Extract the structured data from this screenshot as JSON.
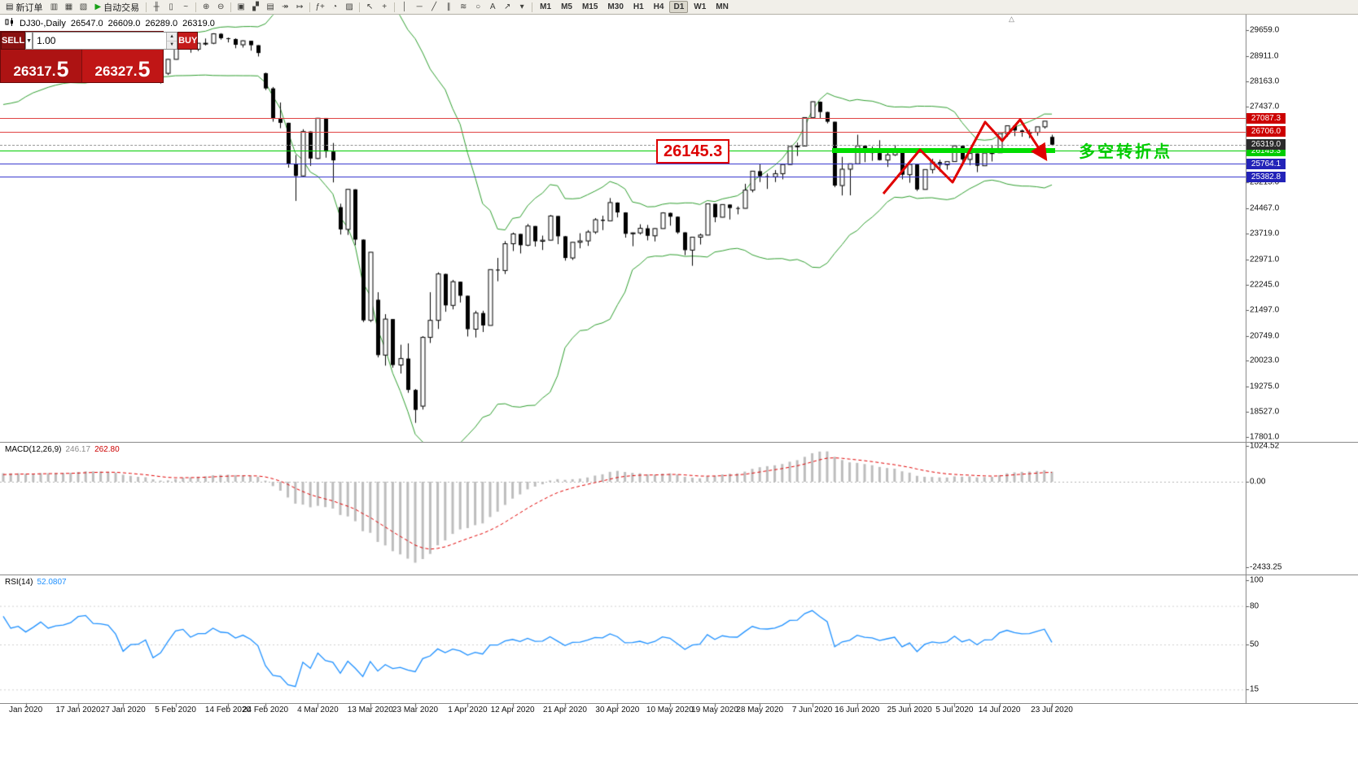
{
  "toolbar": {
    "items": [
      {
        "kind": "button",
        "name": "new-order-button",
        "glyph": "▤",
        "label": "新订单"
      },
      {
        "kind": "icon",
        "name": "market-watch-icon",
        "glyph": "▥"
      },
      {
        "kind": "icon",
        "name": "data-window-icon",
        "glyph": "▦"
      },
      {
        "kind": "icon",
        "name": "navigator-icon",
        "glyph": "▧"
      },
      {
        "kind": "button",
        "name": "auto-trading-button",
        "glyph": "▶",
        "label": "自动交易",
        "glyph_color": "#18a018"
      },
      {
        "kind": "sep"
      },
      {
        "kind": "icon",
        "name": "bar-chart-icon",
        "glyph": "╫"
      },
      {
        "kind": "icon",
        "name": "candlestick-chart-icon",
        "glyph": "▯"
      },
      {
        "kind": "icon",
        "name": "line-chart-icon",
        "glyph": "~"
      },
      {
        "kind": "sep"
      },
      {
        "kind": "icon",
        "name": "zoom-in-icon",
        "glyph": "⊕"
      },
      {
        "kind": "icon",
        "name": "zoom-out-icon",
        "glyph": "⊖"
      },
      {
        "kind": "sep"
      },
      {
        "kind": "icon",
        "name": "new-chart-icon",
        "glyph": "▣"
      },
      {
        "kind": "icon",
        "name": "tile-windows-icon",
        "glyph": "▞"
      },
      {
        "kind": "icon",
        "name": "cascade-windows-icon",
        "glyph": "▤"
      },
      {
        "kind": "icon",
        "name": "auto-scroll-icon",
        "glyph": "↠"
      },
      {
        "kind": "icon",
        "name": "chart-shift-icon",
        "glyph": "↦"
      },
      {
        "kind": "sep"
      },
      {
        "kind": "icon",
        "name": "indicators-icon",
        "glyph": "ƒ+"
      },
      {
        "kind": "icon",
        "name": "periods-icon",
        "glyph": "◔"
      },
      {
        "kind": "icon",
        "name": "templates-icon",
        "glyph": "▨"
      },
      {
        "kind": "sep"
      },
      {
        "kind": "icon",
        "name": "cursor-icon",
        "glyph": "↖"
      },
      {
        "kind": "icon",
        "name": "crosshair-icon",
        "glyph": "+"
      },
      {
        "kind": "sep"
      },
      {
        "kind": "icon",
        "name": "vertical-line-icon",
        "glyph": "│"
      },
      {
        "kind": "icon",
        "name": "horizontal-line-icon",
        "glyph": "─"
      },
      {
        "kind": "icon",
        "name": "trendline-icon",
        "glyph": "╱"
      },
      {
        "kind": "icon",
        "name": "channel-icon",
        "glyph": "∥"
      },
      {
        "kind": "icon",
        "name": "fibonacci-icon",
        "glyph": "≋"
      },
      {
        "kind": "icon",
        "name": "shapes-icon",
        "glyph": "○"
      },
      {
        "kind": "icon",
        "name": "text-label-icon",
        "glyph": "A"
      },
      {
        "kind": "icon",
        "name": "arrow-tools-icon",
        "glyph": "↗"
      },
      {
        "kind": "icon",
        "name": "objects-dropdown-icon",
        "glyph": "▾"
      }
    ],
    "timeframes": [
      "M1",
      "M5",
      "M15",
      "M30",
      "H1",
      "H4",
      "D1",
      "W1",
      "MN"
    ],
    "active_timeframe": "D1"
  },
  "chart_header": {
    "symbol": "DJ30-,Daily",
    "open": "26547.0",
    "high": "26609.0",
    "low": "26289.0",
    "close": "26319.0"
  },
  "trade_panel": {
    "sell_label": "SELL",
    "buy_label": "BUY",
    "volume": "1.00",
    "dropdown_glyph": "▼",
    "spin_up": "▲",
    "spin_down": "▼",
    "sell_whole": "26317.",
    "sell_pip": "5",
    "buy_whole": "26327.",
    "buy_pip": "5"
  },
  "annotations": {
    "price_flag": "26145.3",
    "note_cn": "多空转折点",
    "zigzag_points": [
      [
        1085,
        238
      ],
      [
        1130,
        184
      ],
      [
        1170,
        224
      ],
      [
        1210,
        150
      ],
      [
        1231,
        173
      ],
      [
        1253,
        147
      ],
      [
        1283,
        193
      ]
    ]
  },
  "misc": {
    "shift_marker": "△"
  },
  "chart_data": {
    "type": "candlestick",
    "symbol": "DJ30",
    "timeframe": "Daily",
    "ylim": [
      17801.0,
      29659.0
    ],
    "price_axis_ticks": [
      "29659.0",
      "28911.0",
      "28163.0",
      "27437.0",
      "25215.0",
      "24467.0",
      "23719.0",
      "22971.0",
      "22245.0",
      "21497.0",
      "20749.0",
      "20023.0",
      "19275.0",
      "18527.0",
      "17801.0"
    ],
    "date_labels": [
      {
        "index": 3,
        "label": "Jan 2020"
      },
      {
        "index": 10,
        "label": "17 Jan 2020"
      },
      {
        "index": 16,
        "label": "27 Jan 2020"
      },
      {
        "index": 23,
        "label": "5 Feb 2020"
      },
      {
        "index": 30,
        "label": "14 Feb 2020"
      },
      {
        "index": 35,
        "label": "24 Feb 2020"
      },
      {
        "index": 42,
        "label": "4 Mar 2020"
      },
      {
        "index": 49,
        "label": "13 Mar 2020"
      },
      {
        "index": 55,
        "label": "23 Mar 2020"
      },
      {
        "index": 62,
        "label": "1 Apr 2020"
      },
      {
        "index": 68,
        "label": "12 Apr 2020"
      },
      {
        "index": 75,
        "label": "21 Apr 2020"
      },
      {
        "index": 82,
        "label": "30 Apr 2020"
      },
      {
        "index": 89,
        "label": "10 May 2020"
      },
      {
        "index": 95,
        "label": "19 May 2020"
      },
      {
        "index": 101,
        "label": "28 May 2020"
      },
      {
        "index": 108,
        "label": "7 Jun 2020"
      },
      {
        "index": 114,
        "label": "16 Jun 2020"
      },
      {
        "index": 121,
        "label": "25 Jun 2020"
      },
      {
        "index": 127,
        "label": "5 Jul 2020"
      },
      {
        "index": 133,
        "label": "14 Jul 2020"
      },
      {
        "index": 140,
        "label": "23 Jul 2020"
      }
    ],
    "hlines": [
      {
        "price": 27087.3,
        "color": "#e04444",
        "badge_bg": "#cc0000",
        "label": "27087.3"
      },
      {
        "price": 26706.0,
        "color": "#e04444",
        "badge_bg": "#cc0000",
        "label": "26706.0"
      },
      {
        "price": 26145.3,
        "color": "#00cc00",
        "badge_bg": "#00cc00",
        "label": "26145.3"
      },
      {
        "price": 25764.1,
        "color": "#3b3bd0",
        "badge_bg": "#2323b8",
        "label": "25764.1"
      },
      {
        "price": 25382.8,
        "color": "#3b3bd0",
        "badge_bg": "#2323b8",
        "label": "25382.8"
      }
    ],
    "current_price": {
      "value": 26319.0,
      "label": "26319.0",
      "badge_bg": "#2b2b2b"
    },
    "indicators": {
      "bollinger": {
        "period": 20,
        "deviation": 2,
        "color": "#2f9e2f"
      },
      "macd": {
        "fast": 12,
        "slow": 26,
        "signal": 9,
        "label": "MACD(12,26,9)",
        "main_value": "246.17",
        "signal_value": "262.80",
        "axis_ticks": [
          "1024.52",
          "0.00",
          "-2433.25"
        ],
        "hist_color": "#bdbdbd",
        "signal_color": "#e00000"
      },
      "rsi": {
        "period": 14,
        "label": "RSI(14)",
        "value": "52.0807",
        "axis_ticks": [
          "100",
          "80",
          "50",
          "15"
        ],
        "levels": [
          80,
          50,
          15
        ],
        "color": "#1e90ff"
      }
    },
    "pre_history_closes": [
      27347,
      27046,
      26827,
      26958,
      27090,
      27186,
      27288,
      27462,
      27649,
      27677,
      27783,
      27691,
      27783,
      27875,
      28004,
      28036,
      28121,
      28164,
      28051,
      28066,
      28135,
      27821,
      27783,
      27502,
      27649,
      27782,
      27911,
      28015,
      28132,
      28239,
      28290,
      28338,
      28235,
      28267,
      28376,
      28455,
      28515,
      28551,
      28621,
      28462
    ],
    "candles": [
      [
        28639,
        28890,
        28565,
        28868
      ],
      [
        28868,
        28880,
        28500,
        28634
      ],
      [
        28634,
        28720,
        28418,
        28703
      ],
      [
        28703,
        28710,
        28520,
        28583
      ],
      [
        28583,
        28760,
        28440,
        28745
      ],
      [
        28745,
        28988,
        28715,
        28956
      ],
      [
        28956,
        28960,
        28760,
        28823
      ],
      [
        28823,
        28920,
        28780,
        28907
      ],
      [
        28907,
        28980,
        28850,
        28939
      ],
      [
        28939,
        29060,
        28900,
        29030
      ],
      [
        29030,
        29300,
        29000,
        29297
      ],
      [
        29297,
        29373,
        29250,
        29348
      ],
      [
        29348,
        29350,
        29030,
        29196
      ],
      [
        29196,
        29320,
        29100,
        29186
      ],
      [
        29186,
        29240,
        29040,
        29160
      ],
      [
        29160,
        29180,
        28900,
        28989
      ],
      [
        28700,
        28750,
        28440,
        28535
      ],
      [
        28535,
        28777,
        28500,
        28722
      ],
      [
        28722,
        28950,
        28680,
        28734
      ],
      [
        28734,
        28920,
        28700,
        28859
      ],
      [
        28859,
        28860,
        28169,
        28256
      ],
      [
        28256,
        28490,
        28100,
        28399
      ],
      [
        28399,
        28820,
        28350,
        28807
      ],
      [
        28807,
        29300,
        28800,
        29290
      ],
      [
        29290,
        29408,
        29200,
        29379
      ],
      [
        29379,
        29380,
        29000,
        29102
      ],
      [
        29102,
        29280,
        29050,
        29276
      ],
      [
        29276,
        29415,
        29210,
        29276
      ],
      [
        29276,
        29568,
        29250,
        29551
      ],
      [
        29551,
        29570,
        29380,
        29423
      ],
      [
        29423,
        29440,
        29300,
        29398
      ],
      [
        29398,
        29420,
        29130,
        29232
      ],
      [
        29232,
        29360,
        29150,
        29348
      ],
      [
        29348,
        29350,
        29060,
        29219
      ],
      [
        29219,
        29220,
        28890,
        28992
      ],
      [
        28403,
        28420,
        27912,
        27960
      ],
      [
        27960,
        28000,
        26990,
        27081
      ],
      [
        27081,
        27550,
        26800,
        26957
      ],
      [
        26957,
        26960,
        25650,
        25766
      ],
      [
        25766,
        26020,
        24681,
        25409
      ],
      [
        25409,
        26770,
        25390,
        26703
      ],
      [
        26703,
        26710,
        25700,
        25917
      ],
      [
        25917,
        27100,
        25900,
        27090
      ],
      [
        27090,
        27090,
        25940,
        26121
      ],
      [
        26121,
        26370,
        25220,
        25864
      ],
      [
        24500,
        24600,
        23700,
        23851
      ],
      [
        23851,
        25020,
        23690,
        25018
      ],
      [
        25018,
        25020,
        23390,
        23553
      ],
      [
        23553,
        23560,
        21150,
        21200
      ],
      [
        21200,
        23190,
        21150,
        23185
      ],
      [
        21800,
        22020,
        20120,
        20188
      ],
      [
        20188,
        21380,
        19880,
        21237
      ],
      [
        21237,
        21240,
        19820,
        19898
      ],
      [
        19898,
        20490,
        19650,
        20087
      ],
      [
        20087,
        20530,
        19090,
        19173
      ],
      [
        19173,
        19200,
        18213,
        18591
      ],
      [
        18700,
        20740,
        18600,
        20704
      ],
      [
        20704,
        22020,
        20540,
        21200
      ],
      [
        21200,
        22600,
        20950,
        22552
      ],
      [
        22552,
        22560,
        21450,
        21636
      ],
      [
        21636,
        22380,
        21520,
        22327
      ],
      [
        22327,
        22330,
        21720,
        21917
      ],
      [
        21917,
        21920,
        20730,
        20943
      ],
      [
        20943,
        21480,
        20700,
        21413
      ],
      [
        21413,
        21480,
        20860,
        21052
      ],
      [
        21052,
        22680,
        21050,
        22679
      ],
      [
        22679,
        23020,
        22340,
        22653
      ],
      [
        22653,
        23510,
        22550,
        23433
      ],
      [
        23433,
        23760,
        23220,
        23719
      ],
      [
        23719,
        23720,
        23150,
        23390
      ],
      [
        23390,
        24010,
        23360,
        23949
      ],
      [
        23949,
        23950,
        23350,
        23504
      ],
      [
        23504,
        23670,
        23250,
        23537
      ],
      [
        23537,
        24270,
        23530,
        24242
      ],
      [
        24242,
        24240,
        23420,
        23650
      ],
      [
        23650,
        23660,
        22940,
        23018
      ],
      [
        23018,
        23480,
        22960,
        23475
      ],
      [
        23475,
        23740,
        23300,
        23515
      ],
      [
        23515,
        23830,
        23370,
        23775
      ],
      [
        23775,
        24180,
        23720,
        24133
      ],
      [
        24133,
        24250,
        23830,
        24101
      ],
      [
        24101,
        24765,
        24100,
        24633
      ],
      [
        24633,
        24640,
        24200,
        24345
      ],
      [
        24345,
        24350,
        23610,
        23723
      ],
      [
        23723,
        23760,
        23360,
        23749
      ],
      [
        23749,
        24000,
        23700,
        23883
      ],
      [
        23883,
        23980,
        23530,
        23664
      ],
      [
        23664,
        23890,
        23500,
        23875
      ],
      [
        23875,
        24350,
        23870,
        24331
      ],
      [
        24331,
        24340,
        23960,
        24221
      ],
      [
        24221,
        24230,
        23720,
        23764
      ],
      [
        23764,
        23770,
        23100,
        23247
      ],
      [
        23247,
        23630,
        22790,
        23625
      ],
      [
        23625,
        23730,
        23410,
        23685
      ],
      [
        23685,
        24600,
        23680,
        24597
      ],
      [
        24597,
        24600,
        24060,
        24206
      ],
      [
        24206,
        24580,
        24200,
        24575
      ],
      [
        24575,
        24580,
        24140,
        24474
      ],
      [
        24474,
        24520,
        24290,
        24465
      ],
      [
        24465,
        25180,
        24460,
        24995
      ],
      [
        24995,
        25550,
        24930,
        25548
      ],
      [
        25548,
        25760,
        25230,
        25400
      ],
      [
        25400,
        25480,
        25030,
        25383
      ],
      [
        25383,
        25580,
        25230,
        25475
      ],
      [
        25475,
        25750,
        25310,
        25742
      ],
      [
        25742,
        26270,
        25740,
        26269
      ],
      [
        26269,
        26380,
        25990,
        26281
      ],
      [
        26281,
        27110,
        26280,
        27110
      ],
      [
        27110,
        27580,
        27090,
        27572
      ],
      [
        27572,
        27580,
        27090,
        27272
      ],
      [
        27272,
        27280,
        26940,
        26989
      ],
      [
        26989,
        26990,
        25080,
        25128
      ],
      [
        25128,
        25965,
        24840,
        25605
      ],
      [
        25605,
        25770,
        24843,
        25763
      ],
      [
        25763,
        26610,
        25760,
        26289
      ],
      [
        26289,
        26290,
        25810,
        26119
      ],
      [
        26119,
        26270,
        25850,
        26080
      ],
      [
        26080,
        26450,
        25860,
        25871
      ],
      [
        25871,
        26120,
        25670,
        26024
      ],
      [
        26024,
        26310,
        25990,
        26156
      ],
      [
        26156,
        26160,
        25310,
        25445
      ],
      [
        25445,
        25750,
        25210,
        25745
      ],
      [
        25745,
        25750,
        24970,
        25015
      ],
      [
        25015,
        25600,
        25010,
        25595
      ],
      [
        25595,
        25910,
        25480,
        25812
      ],
      [
        25812,
        25880,
        25530,
        25734
      ],
      [
        25734,
        25830,
        25590,
        25827
      ],
      [
        25827,
        26290,
        25820,
        26287
      ],
      [
        26287,
        26290,
        25710,
        25890
      ],
      [
        25890,
        26110,
        25720,
        26067
      ],
      [
        26067,
        26070,
        25520,
        25706
      ],
      [
        25706,
        26080,
        25700,
        26075
      ],
      [
        26075,
        26300,
        25830,
        26085
      ],
      [
        26085,
        26640,
        26080,
        26642
      ],
      [
        26642,
        26870,
        26550,
        26870
      ],
      [
        26870,
        26880,
        26570,
        26734
      ],
      [
        26734,
        26760,
        26550,
        26671
      ],
      [
        26671,
        26760,
        26510,
        26680
      ],
      [
        26680,
        26840,
        26580,
        26840
      ],
      [
        26840,
        27010,
        26790,
        27005
      ],
      [
        26547,
        26609,
        26289,
        26319
      ]
    ]
  }
}
